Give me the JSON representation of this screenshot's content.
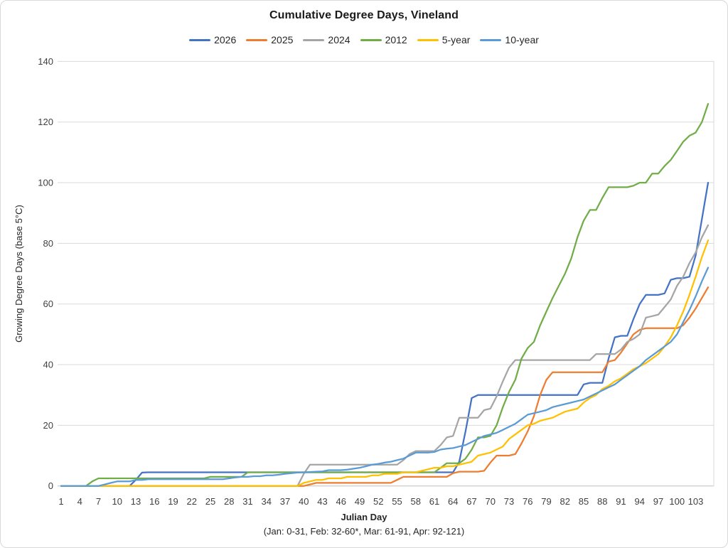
{
  "chart": {
    "title": "Cumulative Degree Days, Vineland",
    "xlabel": "Julian Day",
    "x_footnote": "(Jan: 0-31, Feb: 32-60*, Mar: 61-91, Apr: 92-121)",
    "ylabel": "Growing Degree Days (base 5°C)"
  },
  "chart_data": {
    "type": "line",
    "title": "Cumulative Degree Days, Vineland",
    "xlabel": "Julian Day",
    "ylabel": "Growing Degree Days (base 5°C)",
    "x_footnote": "(Jan: 0-31, Feb: 32-60*, Mar: 61-91, Apr: 92-121)",
    "x_is_julian_day": true,
    "x_range": [
      1,
      105
    ],
    "ylim": [
      0,
      140
    ],
    "y_ticks": [
      0,
      20,
      40,
      60,
      80,
      100,
      120,
      140
    ],
    "x_ticks": [
      1,
      4,
      7,
      10,
      13,
      16,
      19,
      22,
      25,
      28,
      31,
      34,
      37,
      40,
      43,
      46,
      49,
      52,
      55,
      58,
      61,
      64,
      67,
      70,
      73,
      76,
      79,
      82,
      85,
      88,
      91,
      94,
      97,
      100,
      103
    ],
    "grid": "horizontal",
    "legend_position": "top",
    "series": [
      {
        "name": "2026",
        "color": "#4472C4",
        "values": [
          0,
          0,
          0,
          0,
          0,
          0,
          0,
          0,
          0,
          0,
          0,
          0,
          2,
          4.4,
          4.5,
          4.5,
          4.5,
          4.5,
          4.5,
          4.5,
          4.5,
          4.5,
          4.5,
          4.5,
          4.5,
          4.5,
          4.5,
          4.5,
          4.5,
          4.5,
          4.5,
          4.5,
          4.5,
          4.5,
          4.5,
          4.5,
          4.5,
          4.5,
          4.5,
          4.5,
          4.5,
          4.5,
          4.5,
          4.5,
          4.5,
          4.5,
          4.5,
          4.5,
          4.5,
          4.5,
          4.5,
          4.5,
          4.5,
          4.5,
          4.5,
          4.5,
          4.5,
          4.5,
          4.5,
          4.5,
          4.5,
          4.5,
          4.5,
          4.5,
          8,
          18,
          29,
          30,
          30,
          30,
          30,
          30,
          30,
          30,
          30,
          30,
          30,
          30,
          30,
          30,
          30,
          30,
          30,
          30,
          33.5,
          34,
          34,
          34,
          42,
          49,
          49.5,
          49.5,
          55,
          60,
          63,
          63,
          63,
          63.5,
          68,
          68.5,
          68.5,
          69,
          76,
          88,
          100
        ]
      },
      {
        "name": "2025",
        "color": "#ED7D31",
        "values": [
          0,
          0,
          0,
          0,
          0,
          0,
          0,
          0,
          0,
          0,
          0,
          0,
          0,
          0,
          0,
          0,
          0,
          0,
          0,
          0,
          0,
          0,
          0,
          0,
          0,
          0,
          0,
          0,
          0,
          0,
          0,
          0,
          0,
          0,
          0,
          0,
          0,
          0,
          0,
          0,
          0.5,
          1,
          1,
          1,
          1,
          1,
          1,
          1,
          1,
          1,
          1,
          1,
          1,
          1,
          2,
          3,
          3,
          3,
          3,
          3,
          3,
          3,
          3,
          4.2,
          4.7,
          4.7,
          4.7,
          4.7,
          5,
          7.7,
          10,
          10,
          10,
          10.5,
          14,
          18,
          23,
          30,
          35,
          37.5,
          37.5,
          37.5,
          37.5,
          37.5,
          37.5,
          37.5,
          37.5,
          37.5,
          41,
          41.5,
          44,
          47,
          50,
          51.5,
          52,
          52,
          52,
          52,
          52,
          52,
          53,
          55.5,
          58.5,
          62,
          65.5
        ]
      },
      {
        "name": "2024",
        "color": "#A5A5A5",
        "values": [
          0,
          0,
          0,
          0,
          0,
          0,
          0,
          0,
          0,
          0,
          0,
          0,
          0,
          0,
          0,
          0,
          0,
          0,
          0,
          0,
          0,
          0,
          0,
          0,
          0,
          0,
          0,
          0,
          0,
          0,
          0,
          0,
          0,
          0,
          0,
          0,
          0,
          0,
          0,
          4,
          7,
          7,
          7,
          7,
          7,
          7,
          7,
          7,
          7,
          7,
          7,
          7,
          7,
          7,
          7,
          8.5,
          10.5,
          11.5,
          11.5,
          11.5,
          11.5,
          13.5,
          16,
          16.5,
          22.5,
          22.5,
          22.5,
          22.5,
          25,
          25.5,
          29.5,
          34.5,
          39,
          41.5,
          41.5,
          41.5,
          41.5,
          41.5,
          41.5,
          41.5,
          41.5,
          41.5,
          41.5,
          41.5,
          41.5,
          41.5,
          43.5,
          43.5,
          43.5,
          43.5,
          45,
          47.5,
          48.5,
          50,
          55.5,
          56,
          56.5,
          59,
          61.5,
          66,
          69,
          73.5,
          77,
          82,
          86
        ]
      },
      {
        "name": "2012",
        "color": "#70AD47",
        "values": [
          0,
          0,
          0,
          0,
          0,
          1.5,
          2.5,
          2.5,
          2.5,
          2.5,
          2.5,
          2.5,
          2.5,
          2.5,
          2.5,
          2.5,
          2.5,
          2.5,
          2.5,
          2.5,
          2.5,
          2.5,
          2.5,
          2.5,
          3,
          3,
          3,
          3,
          3,
          3,
          4.5,
          4.5,
          4.5,
          4.5,
          4.5,
          4.5,
          4.5,
          4.5,
          4.5,
          4.5,
          4.5,
          4.5,
          4.5,
          4.5,
          4.5,
          4.5,
          4.5,
          4.5,
          4.5,
          4.5,
          4.5,
          4.5,
          4.5,
          4.5,
          4.5,
          4.5,
          4.5,
          4.5,
          4.5,
          4.5,
          4.5,
          6,
          7.5,
          7.5,
          7.5,
          9,
          12,
          16,
          16,
          16.5,
          20,
          26,
          31,
          35,
          42,
          45.5,
          47.5,
          53,
          57.5,
          62,
          66,
          70,
          75,
          82,
          87.5,
          91,
          91,
          95,
          98.5,
          98.5,
          98.5,
          98.5,
          99,
          100,
          100,
          103,
          103,
          105.5,
          107.5,
          110.5,
          113.5,
          115.5,
          116.5,
          120,
          126
        ]
      },
      {
        "name": "5-year",
        "color": "#FFC000",
        "values": [
          0,
          0,
          0,
          0,
          0,
          0,
          0,
          0,
          0,
          0,
          0,
          0,
          0,
          0,
          0,
          0,
          0,
          0,
          0,
          0,
          0,
          0,
          0,
          0,
          0,
          0,
          0,
          0,
          0,
          0,
          0,
          0,
          0,
          0,
          0,
          0,
          0,
          0,
          0,
          1,
          1.5,
          2,
          2,
          2.5,
          2.5,
          2.5,
          3,
          3,
          3,
          3,
          3.5,
          3.5,
          4,
          4,
          4,
          4.5,
          4.5,
          4.5,
          5,
          5.5,
          6,
          6,
          6.5,
          6.5,
          7,
          7.5,
          8,
          10,
          10.5,
          11,
          12,
          13,
          15.5,
          17,
          18.5,
          20,
          20.5,
          21.5,
          22,
          22.5,
          23.5,
          24.5,
          25,
          25.5,
          27.5,
          29,
          30,
          32,
          33,
          34.5,
          35.5,
          37,
          38.5,
          39.5,
          40.5,
          42,
          43.5,
          46,
          49,
          53,
          57.5,
          63,
          69,
          75.5,
          81
        ]
      },
      {
        "name": "10-year",
        "color": "#5B9BD5",
        "values": [
          0,
          0,
          0,
          0,
          0,
          0,
          0,
          0.5,
          1,
          1.5,
          1.5,
          1.5,
          2,
          2,
          2.2,
          2.2,
          2.2,
          2.2,
          2.2,
          2.2,
          2.2,
          2.2,
          2.2,
          2.2,
          2.2,
          2.2,
          2.2,
          2.5,
          2.8,
          3,
          3,
          3.2,
          3.2,
          3.5,
          3.5,
          3.7,
          4,
          4.2,
          4.4,
          4.5,
          4.6,
          4.7,
          4.8,
          5.2,
          5.2,
          5.2,
          5.4,
          5.7,
          6,
          6.5,
          7,
          7.3,
          7.7,
          8,
          8.5,
          9,
          10,
          11,
          11,
          11,
          11.2,
          12,
          12.3,
          12.5,
          13,
          13.5,
          14.5,
          15.5,
          16.5,
          17,
          17.5,
          18.5,
          19.5,
          20.5,
          22,
          23.5,
          24,
          24.5,
          25,
          26,
          26.5,
          27,
          27.5,
          28,
          28.5,
          29.5,
          30.5,
          31.5,
          32.5,
          33.5,
          35,
          36.5,
          38,
          39.5,
          41.5,
          43,
          44.5,
          46,
          47.5,
          50,
          54,
          58,
          62.5,
          67.5,
          72
        ]
      }
    ]
  }
}
